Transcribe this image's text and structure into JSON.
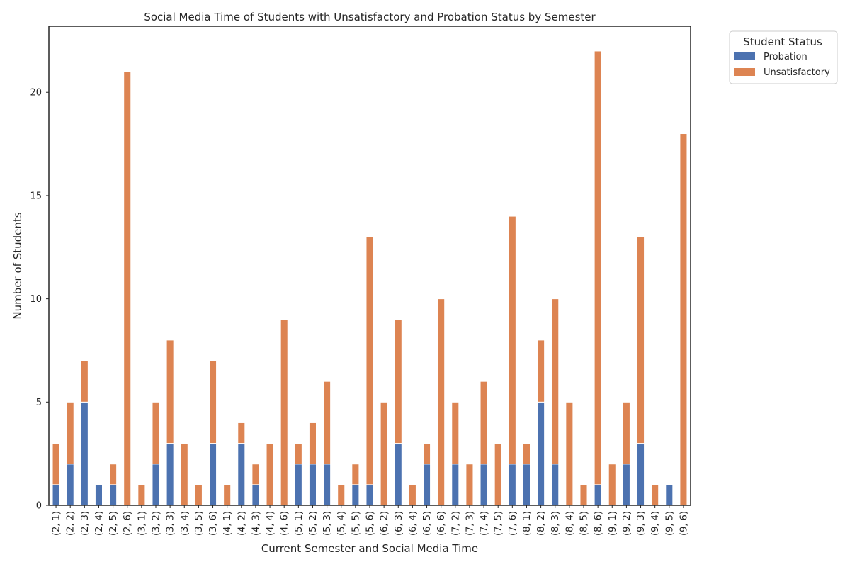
{
  "chart_data": {
    "type": "bar",
    "stacked": true,
    "title": "Social Media Time of Students with Unsatisfactory and Probation Status by Semester",
    "xlabel": "Current Semester and Social Media Time",
    "ylabel": "Number of Students",
    "ylim": [
      0,
      23.2
    ],
    "yticks": [
      0,
      5,
      10,
      15,
      20
    ],
    "grid": false,
    "legend_title": "Student Status",
    "legend_placement": "outside-top-right",
    "categories": [
      "(2, 1)",
      "(2, 2)",
      "(2, 3)",
      "(2, 4)",
      "(2, 5)",
      "(2, 6)",
      "(3, 1)",
      "(3, 2)",
      "(3, 3)",
      "(3, 4)",
      "(3, 5)",
      "(3, 6)",
      "(4, 1)",
      "(4, 2)",
      "(4, 3)",
      "(4, 4)",
      "(4, 6)",
      "(5, 1)",
      "(5, 2)",
      "(5, 3)",
      "(5, 4)",
      "(5, 5)",
      "(5, 6)",
      "(6, 2)",
      "(6, 3)",
      "(6, 4)",
      "(6, 5)",
      "(6, 6)",
      "(7, 2)",
      "(7, 3)",
      "(7, 4)",
      "(7, 5)",
      "(7, 6)",
      "(8, 1)",
      "(8, 2)",
      "(8, 3)",
      "(8, 4)",
      "(8, 5)",
      "(8, 6)",
      "(9, 1)",
      "(9, 2)",
      "(9, 3)",
      "(9, 4)",
      "(9, 5)",
      "(9, 6)"
    ],
    "series": [
      {
        "name": "Probation",
        "color": "#4c72b0",
        "values": [
          1,
          2,
          5,
          1,
          1,
          0,
          0,
          2,
          3,
          0,
          0,
          3,
          0,
          3,
          1,
          0,
          0,
          2,
          2,
          2,
          0,
          1,
          1,
          0,
          3,
          0,
          2,
          0,
          2,
          0,
          2,
          0,
          2,
          2,
          5,
          2,
          0,
          0,
          1,
          0,
          2,
          3,
          0,
          1,
          0
        ]
      },
      {
        "name": "Unsatisfactory",
        "color": "#dd8452",
        "values": [
          2,
          3,
          2,
          0,
          1,
          21,
          1,
          3,
          5,
          3,
          1,
          4,
          1,
          1,
          1,
          3,
          9,
          1,
          2,
          4,
          1,
          1,
          12,
          5,
          6,
          1,
          1,
          10,
          3,
          2,
          4,
          3,
          12,
          1,
          3,
          8,
          5,
          1,
          21,
          2,
          3,
          10,
          1,
          0,
          18
        ]
      }
    ]
  }
}
